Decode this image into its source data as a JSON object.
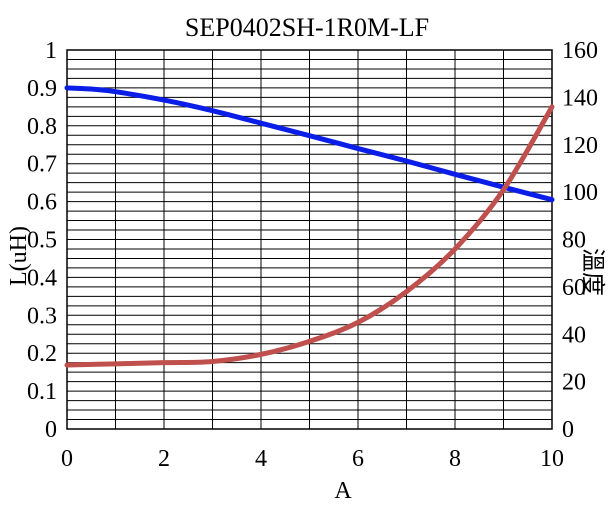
{
  "chart_data": {
    "type": "line",
    "title": "SEP0402SH-1R0M-LF",
    "xlabel": "A",
    "ylabel_left": "L(uH)",
    "ylabel_right": "溫度",
    "xlim": [
      0,
      10
    ],
    "ylim_left": [
      0,
      1
    ],
    "ylim_right": [
      0,
      160
    ],
    "x_ticks": [
      "0",
      "2",
      "4",
      "6",
      "8",
      "10"
    ],
    "y_ticks_left": [
      "0",
      "0.1",
      "0.2",
      "0.3",
      "0.4",
      "0.5",
      "0.6",
      "0.7",
      "0.8",
      "0.9",
      "1"
    ],
    "y_ticks_right": [
      "0",
      "20",
      "40",
      "60",
      "80",
      "100",
      "120",
      "140",
      "160"
    ],
    "grid": true,
    "colors": {
      "inductance": "#0a1ee8",
      "temperature": "#c0504d"
    },
    "series": [
      {
        "axis": "left",
        "x": [
          0,
          0.5,
          1,
          2,
          3,
          4,
          5,
          6,
          7,
          8,
          9,
          10
        ],
        "values": [
          0.9,
          0.897,
          0.89,
          0.868,
          0.84,
          0.807,
          0.774,
          0.74,
          0.707,
          0.672,
          0.638,
          0.605
        ]
      },
      {
        "axis": "right",
        "x": [
          0,
          1,
          2,
          3,
          4,
          5,
          6,
          7,
          8,
          9,
          10
        ],
        "values": [
          27,
          27.5,
          28,
          28.5,
          31.5,
          37,
          45,
          58,
          76,
          101,
          136
        ]
      }
    ]
  }
}
